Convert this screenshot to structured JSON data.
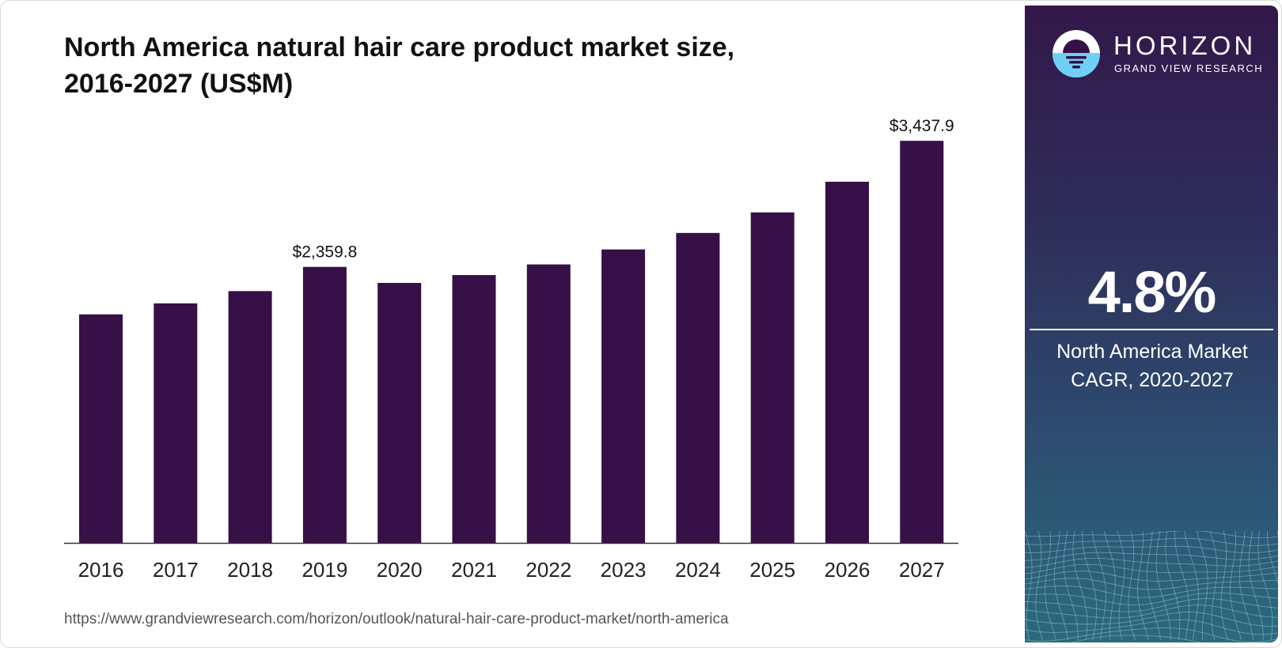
{
  "title_line1": "North America natural hair care product market size,",
  "title_line2": "2016-2027 (US$M)",
  "source_url": "https://www.grandviewresearch.com/horizon/outlook/natural-hair-care-product-market/north-america",
  "brand": {
    "name": "HORIZON",
    "subtitle": "GRAND VIEW RESEARCH",
    "logo_icon": "horizon-sun-logo"
  },
  "highlight": {
    "value": "4.8%",
    "label_line1": "North America Market",
    "label_line2": "CAGR, 2020-2027"
  },
  "colors": {
    "bar": "#361046",
    "panel_top": "#33184a",
    "panel_bottom": "#2b6a7e",
    "logo_accent": "#4fc3f7"
  },
  "chart_data": {
    "type": "bar",
    "categories": [
      "2016",
      "2017",
      "2018",
      "2019",
      "2020",
      "2021",
      "2022",
      "2023",
      "2024",
      "2025",
      "2026",
      "2027"
    ],
    "values": [
      1954,
      2048,
      2153,
      2359.8,
      2223,
      2290,
      2381,
      2509,
      2650,
      2826,
      3088,
      3437.9
    ],
    "data_labels": [
      {
        "index": 3,
        "text": "$2,359.8"
      },
      {
        "index": 11,
        "text": "$3,437.9"
      }
    ],
    "ylim": [
      0,
      3500
    ],
    "grid": false,
    "legend": "none"
  }
}
